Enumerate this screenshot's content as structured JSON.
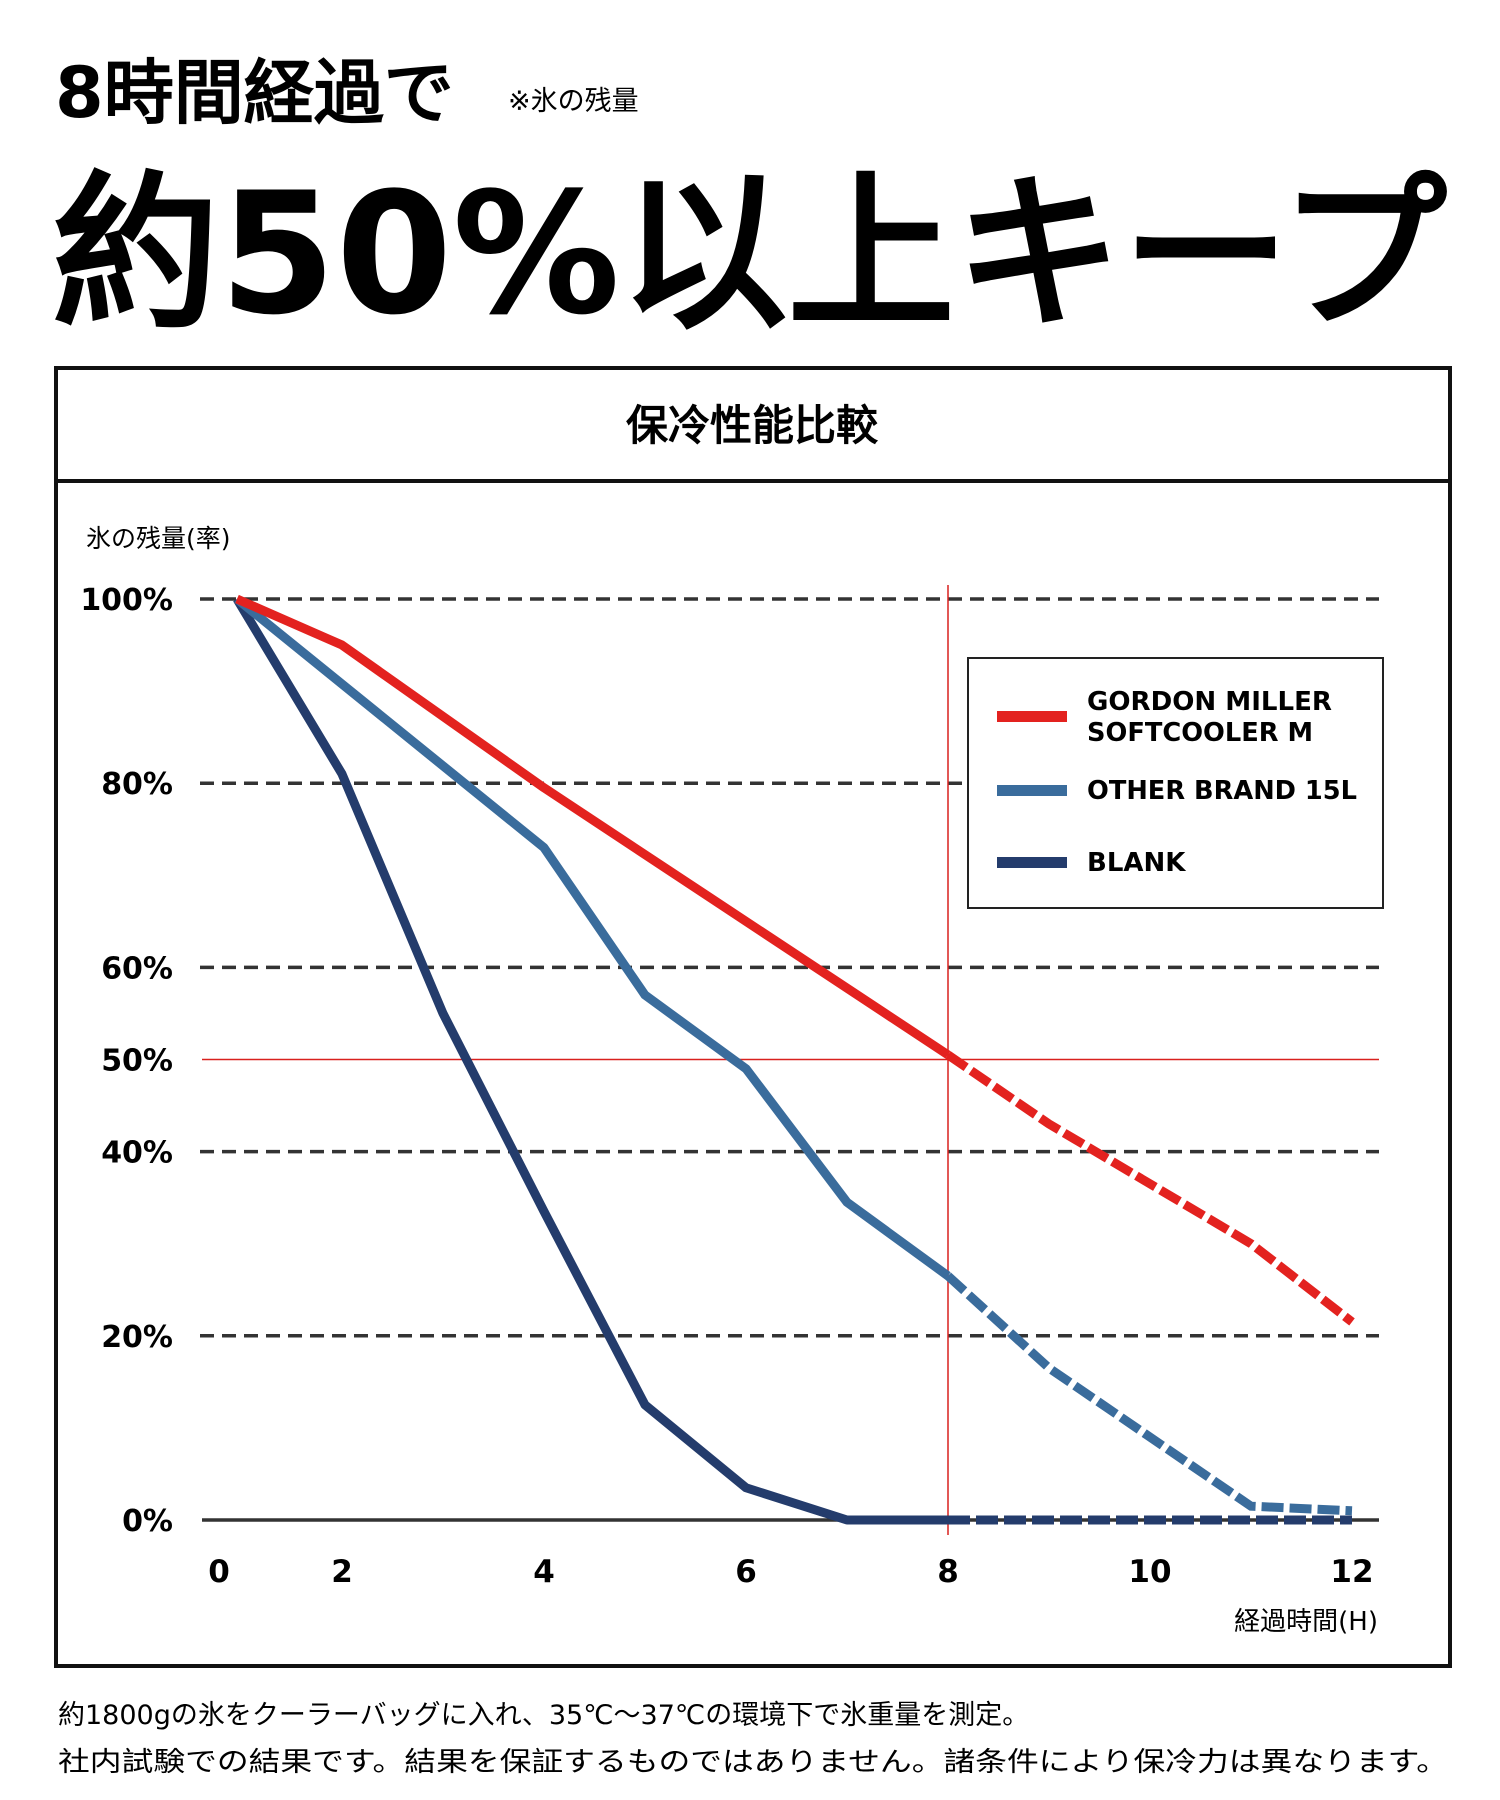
{
  "headline": {
    "line1": "8時間経過で",
    "note": "※氷の残量",
    "line2": "約50%以上キープ"
  },
  "footnotes": [
    "約1800gの氷をクーラーバッグに入れ、35℃〜37℃の環境下で氷重量を測定。",
    "社内試験での結果です。結果を保証するものではありません。諸条件により保冷力は異なります。"
  ],
  "chart_data": {
    "type": "line",
    "title": "保冷性能比較",
    "ylabel": "氷の残量(率)",
    "xlabel": "経過時間(H)",
    "ylim": [
      0,
      100
    ],
    "xlim": [
      0,
      12
    ],
    "y_ticks": [
      "100%",
      "80%",
      "60%",
      "50%",
      "40%",
      "20%",
      "0%"
    ],
    "x_ticks": [
      "0",
      "2",
      "4",
      "6",
      "8",
      "10",
      "12"
    ],
    "grid": true,
    "reference_lines": {
      "x": 8,
      "y": 50,
      "color": "#d9211e"
    },
    "dashed_after_x": 8,
    "legend_position": "top-right",
    "series": [
      {
        "name": "GORDON MILLER SOFTCOOLER M",
        "color": "#e3221f",
        "x": [
          0,
          2,
          4,
          8,
          9,
          11,
          12
        ],
        "y": [
          100,
          95,
          79.5,
          50.5,
          43,
          30,
          21.5
        ]
      },
      {
        "name": "OTHER BRAND 15L",
        "color": "#3a6c9c",
        "x": [
          0,
          4,
          5,
          6,
          7,
          8,
          9,
          11,
          12
        ],
        "y": [
          100,
          73,
          57,
          49,
          34.5,
          26.5,
          16.5,
          1.5,
          1
        ]
      },
      {
        "name": "BLANK",
        "color": "#243c6c",
        "x": [
          0,
          2,
          3,
          4,
          5,
          6,
          7,
          8,
          12
        ],
        "y": [
          100,
          81,
          55,
          33.5,
          12.5,
          3.5,
          0,
          0,
          0
        ]
      }
    ]
  }
}
